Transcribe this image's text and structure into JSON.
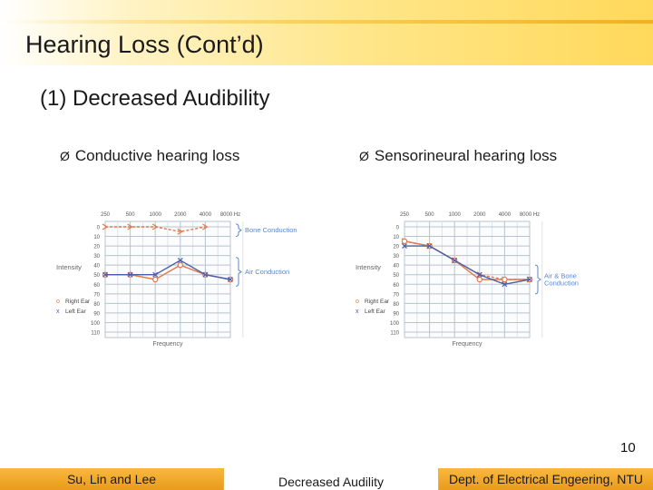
{
  "title": "Hearing Loss (Cont’d)",
  "subtitle": "(1) Decreased Audibility",
  "bullet_glyph": "Ø",
  "bullets": {
    "left": "Conductive hearing loss",
    "right": "Sensorineural hearing loss"
  },
  "page_number": "10",
  "footer": {
    "left": "Su, Lin and Lee",
    "center": "Decreased Audility",
    "right": "Dept. of Electrical Engeering, NTU"
  },
  "colors": {
    "right_ear": "#e0784a",
    "left_ear": "#4a5fa8",
    "grid": "#b9c3cc",
    "annotation": "#5b86c9",
    "footer_orange": "#f0a830"
  },
  "chart_data": [
    {
      "type": "line",
      "frequencies": [
        "250",
        "500",
        "1000",
        "2000",
        "4000",
        "8000 Hz"
      ],
      "intensity_ticks": [
        "0",
        "10",
        "20",
        "30",
        "40",
        "50",
        "60",
        "70",
        "80",
        "90",
        "100",
        "110"
      ],
      "ylabel": "Intensity",
      "xlabel": "Frequency",
      "ylim": [
        0,
        110
      ],
      "legend": {
        "right_ear": "Right Ear",
        "left_ear": "Left Ear"
      },
      "legend_symbols": {
        "right_ear": "o",
        "left_ear": "x"
      },
      "brackets": [
        "Bone Conduction",
        "Air Conduction"
      ],
      "series": [
        {
          "name": "Right Ear",
          "kind": "bone",
          "values": [
            0,
            0,
            0,
            5,
            0,
            null
          ]
        },
        {
          "name": "Right Ear",
          "kind": "air",
          "values": [
            50,
            50,
            55,
            40,
            50,
            55
          ]
        },
        {
          "name": "Left Ear",
          "kind": "air",
          "values": [
            50,
            50,
            50,
            35,
            50,
            55
          ]
        }
      ]
    },
    {
      "type": "line",
      "frequencies": [
        "250",
        "500",
        "1000",
        "2000",
        "4000",
        "8000 Hz"
      ],
      "intensity_ticks": [
        "0",
        "10",
        "20",
        "30",
        "40",
        "50",
        "60",
        "70",
        "80",
        "90",
        "100",
        "110"
      ],
      "ylabel": "Intensity",
      "xlabel": "Frequency",
      "ylim": [
        0,
        110
      ],
      "legend": {
        "right_ear": "Right Ear",
        "left_ear": "Left Ear"
      },
      "legend_symbols": {
        "right_ear": "o",
        "left_ear": "x"
      },
      "brackets": [
        "Air & Bone\nConduction"
      ],
      "series": [
        {
          "name": "Right Ear",
          "kind": "bone",
          "values": [
            15,
            20,
            35,
            50,
            55,
            55
          ]
        },
        {
          "name": "Right Ear",
          "kind": "air",
          "values": [
            15,
            20,
            35,
            55,
            55,
            55
          ]
        },
        {
          "name": "Left Ear",
          "kind": "air",
          "values": [
            20,
            20,
            35,
            50,
            60,
            55
          ]
        }
      ]
    }
  ]
}
